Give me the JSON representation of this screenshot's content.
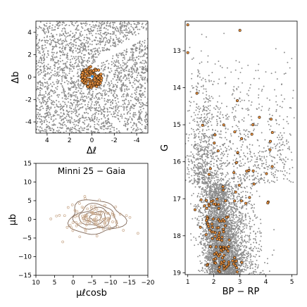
{
  "colors": {
    "field": "#8c8c8c",
    "member_face": "#e8903f",
    "member_edge": "#2a1a0a",
    "center": "#3a8fd9",
    "contour": "#806858",
    "pm_points": "#c9a98c"
  },
  "chart_data": [
    {
      "id": "position",
      "type": "scatter",
      "title": "",
      "xlabel": "Δℓ",
      "ylabel": "Δb",
      "xlim": [
        5,
        -5
      ],
      "ylim": [
        -5,
        5
      ],
      "xticks": [
        "-4",
        "-2",
        "0",
        "2",
        "4"
      ],
      "yticks": [
        "-4",
        "-2",
        "0",
        "2",
        "4"
      ],
      "xtick_values": [
        -4,
        -2,
        0,
        2,
        4
      ],
      "ytick_values": [
        -4,
        -2,
        0,
        2,
        4
      ],
      "series": [
        {
          "role": "field",
          "n_points": 2600
        },
        {
          "role": "members",
          "center": [
            0,
            0
          ],
          "radius_deg": 0.95,
          "n_points": 120
        }
      ]
    },
    {
      "id": "proper_motion",
      "type": "scatter",
      "title": "Minni 25  −  Gaia",
      "xlabel": "μℓcosb",
      "ylabel": "μb",
      "xlim": [
        10,
        -20
      ],
      "ylim": [
        -15,
        15
      ],
      "xticks": [
        "10",
        "5",
        "0",
        "−5",
        "−10",
        "−15",
        "−20"
      ],
      "yticks": [
        "−15",
        "−10",
        "−5",
        "0",
        "5",
        "10",
        "15"
      ],
      "xtick_values": [
        10,
        5,
        0,
        -5,
        -10,
        -15,
        -20
      ],
      "ytick_values": [
        -15,
        -10,
        -5,
        0,
        5,
        10,
        15
      ],
      "series": [
        {
          "role": "members",
          "center": [
            -5.5,
            0.3
          ],
          "sigma": [
            4.0,
            2.2
          ],
          "n_points": 110
        },
        {
          "role": "contours",
          "center": [
            -6,
            0.5
          ],
          "levels": [
            [
              1.5,
              0.9
            ],
            [
              2.8,
              1.6
            ],
            [
              4.2,
              2.4
            ],
            [
              5.6,
              3.3
            ],
            [
              7.2,
              4.5
            ]
          ]
        }
      ]
    },
    {
      "id": "cmd",
      "type": "scatter",
      "title": "",
      "xlabel": "BP − RP",
      "ylabel": "G",
      "xlim": [
        0.9,
        5.2
      ],
      "ylim": [
        19.05,
        12.2
      ],
      "xticks": [
        "1",
        "2",
        "3",
        "4",
        "5"
      ],
      "yticks": [
        "13",
        "14",
        "15",
        "16",
        "17",
        "18",
        "19"
      ],
      "xtick_values": [
        1,
        2,
        3,
        4,
        5
      ],
      "ytick_values": [
        13,
        14,
        15,
        16,
        17,
        18,
        19
      ],
      "series": [
        {
          "role": "field",
          "n_points": 5200
        },
        {
          "role": "members",
          "n_points": 140,
          "bright_points": [
            [
              1.0,
              12.3
            ],
            [
              1.0,
              13.05
            ],
            [
              3.0,
              12.45
            ],
            [
              1.35,
              14.15
            ],
            [
              2.9,
              14.35
            ],
            [
              3.5,
              15.0
            ],
            [
              3.75,
              14.8
            ],
            [
              4.2,
              14.85
            ]
          ]
        }
      ]
    }
  ]
}
